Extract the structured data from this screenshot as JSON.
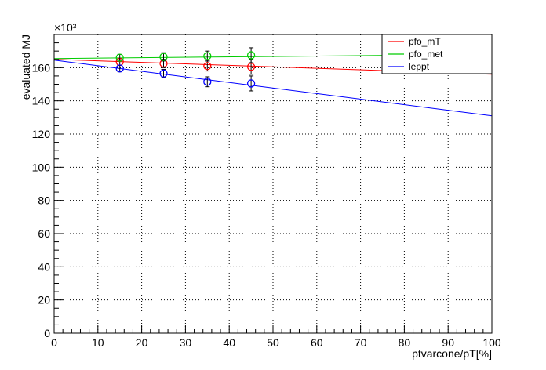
{
  "chart_data": {
    "type": "scatter",
    "title": "",
    "xlabel": "ptvarcone/pT[%]",
    "ylabel": "evaluated MJ",
    "y_multiplier_label": "×10³",
    "xlim": [
      0,
      100
    ],
    "ylim": [
      0,
      180
    ],
    "x_ticks": [
      0,
      10,
      20,
      30,
      40,
      50,
      60,
      70,
      80,
      90,
      100
    ],
    "y_ticks": [
      0,
      20,
      40,
      60,
      80,
      100,
      120,
      140,
      160
    ],
    "grid": true,
    "legend_position": "top-right",
    "series": [
      {
        "name": "pfo_mT",
        "color": "#ff0000",
        "points": [
          {
            "x": 15,
            "y": 163.5,
            "err": 2.0
          },
          {
            "x": 25,
            "y": 162.5,
            "err": 2.5
          },
          {
            "x": 35,
            "y": 161.0,
            "err": 3.0
          },
          {
            "x": 45,
            "y": 160.5,
            "err": 4.5
          }
        ],
        "fit": {
          "x": [
            0,
            100
          ],
          "y": [
            165.0,
            156.0
          ]
        }
      },
      {
        "name": "pfo_met",
        "color": "#00cc00",
        "points": [
          {
            "x": 15,
            "y": 166.0,
            "err": 2.0
          },
          {
            "x": 25,
            "y": 166.5,
            "err": 2.5
          },
          {
            "x": 35,
            "y": 167.0,
            "err": 3.0
          },
          {
            "x": 45,
            "y": 167.5,
            "err": 4.5
          }
        ],
        "fit": {
          "x": [
            0,
            100
          ],
          "y": [
            165.5,
            168.0
          ]
        }
      },
      {
        "name": "leppt",
        "color": "#0000ff",
        "points": [
          {
            "x": 15,
            "y": 159.5,
            "err": 2.0
          },
          {
            "x": 25,
            "y": 156.5,
            "err": 2.5
          },
          {
            "x": 35,
            "y": 151.5,
            "err": 3.0
          },
          {
            "x": 45,
            "y": 150.5,
            "err": 4.5
          }
        ],
        "fit": {
          "x": [
            0,
            100
          ],
          "y": [
            164.5,
            131.0
          ]
        }
      }
    ]
  }
}
